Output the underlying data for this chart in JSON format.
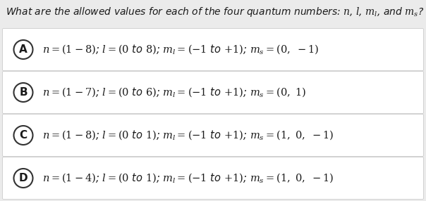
{
  "bg_color": "#ebebeb",
  "box_color": "#ffffff",
  "text_color": "#1a1a1a",
  "border_color": "#cccccc",
  "circle_color": "#333333",
  "question": "What are the allowed values for each of the four quantum numbers: $n$, $l$, $m_{l}$, and $m_{s}$?",
  "option_labels": [
    "A",
    "B",
    "C",
    "D"
  ],
  "option_texts": [
    "$n=(1-8)$; $l=(0$ to $8)$; $m_{l}=(-1$ to $+1)$; $m_{s}=(0,\\ -1)$",
    "$n=(1-7)$; $l=(0$ to $6)$; $m_{l}=(-1$ to $+1)$; $m_{s}=(0,\\ 1)$",
    "$n=(1-8)$; $l=(0$ to $1)$; $m_{l}=(-1$ to $+1)$; $m_{s}=(1,\\ 0,\\ -1)$",
    "$n=(1-4)$; $l=(0$ to $1)$; $m_{l}=(-1$ to $+1)$; $m_{s}=(1,\\ 0,\\ -1)$"
  ],
  "figsize": [
    6.04,
    2.86
  ],
  "dpi": 100,
  "question_fontsize": 10.0,
  "option_fontsize": 10.5,
  "label_fontsize": 11.0
}
